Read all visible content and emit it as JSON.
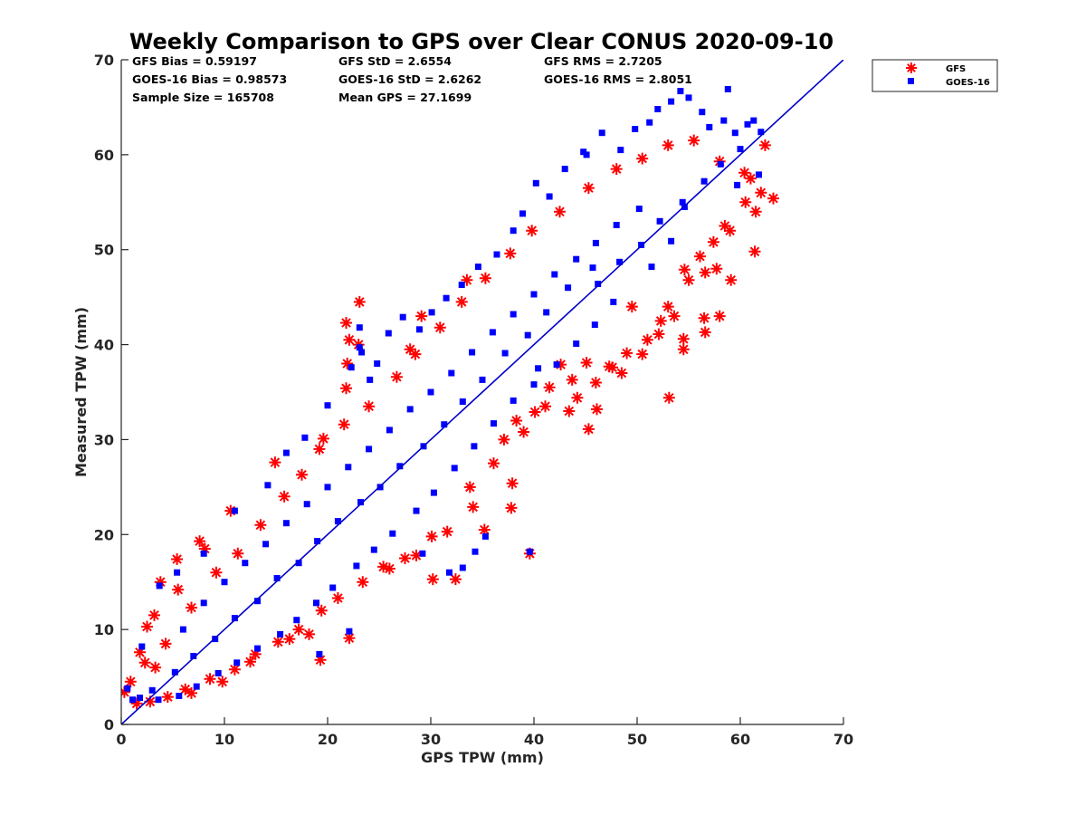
{
  "chart_data": {
    "type": "scatter",
    "title": "Weekly Comparison to GPS over Clear CONUS 2020-09-10",
    "xlabel": "GPS TPW (mm)",
    "ylabel": "Measured TPW (mm)",
    "xlim": [
      0,
      70
    ],
    "ylim": [
      0,
      70
    ],
    "xticks": [
      "0",
      "10",
      "20",
      "30",
      "40",
      "50",
      "60",
      "70"
    ],
    "yticks": [
      "0",
      "10",
      "20",
      "30",
      "40",
      "50",
      "60",
      "70"
    ],
    "grid": false,
    "legend_position": "outside top-right",
    "reference_line": {
      "name": "1:1 line",
      "from": [
        0,
        0
      ],
      "to": [
        70,
        70
      ],
      "color": "#0000cc"
    },
    "stats": [
      [
        "GFS Bias = 0.59197",
        "GFS StD = 2.6554",
        "GFS RMS = 2.7205"
      ],
      [
        "GOES-16 Bias = 0.98573",
        "GOES-16 StD = 2.6262",
        "GOES-16 RMS = 2.8051"
      ],
      [
        "Sample Size = 165708",
        "Mean GPS = 27.1699"
      ]
    ],
    "series": [
      {
        "name": "GFS",
        "marker": "asterisk",
        "color": "#ff0000",
        "points": [
          [
            0.3,
            3.4
          ],
          [
            0.9,
            4.5
          ],
          [
            1.8,
            7.6
          ],
          [
            2.3,
            6.5
          ],
          [
            2.5,
            10.3
          ],
          [
            3.2,
            11.5
          ],
          [
            3.8,
            15.0
          ],
          [
            5.4,
            17.4
          ],
          [
            5.5,
            14.2
          ],
          [
            7.6,
            19.3
          ],
          [
            8.1,
            18.5
          ],
          [
            10.6,
            22.5
          ],
          [
            14.9,
            27.6
          ],
          [
            19.6,
            30.1
          ],
          [
            21.8,
            35.4
          ],
          [
            21.9,
            38.0
          ],
          [
            21.8,
            42.3
          ],
          [
            23.1,
            44.5
          ],
          [
            23.0,
            40.0
          ],
          [
            22.1,
            40.5
          ],
          [
            28.0,
            39.5
          ],
          [
            29.1,
            43.0
          ],
          [
            33.5,
            46.8
          ],
          [
            37.8,
            22.8
          ],
          [
            37.9,
            25.4
          ],
          [
            39.6,
            18.0
          ],
          [
            43.4,
            33.0
          ],
          [
            45.3,
            31.1
          ],
          [
            46.1,
            33.2
          ],
          [
            47.3,
            37.7
          ],
          [
            49.0,
            39.1
          ],
          [
            52.3,
            42.5
          ],
          [
            53.1,
            34.4
          ],
          [
            54.5,
            39.5
          ],
          [
            54.5,
            40.6
          ],
          [
            56.6,
            41.3
          ],
          [
            56.5,
            42.8
          ],
          [
            58.0,
            43.0
          ],
          [
            59.1,
            46.8
          ],
          [
            61.4,
            49.8
          ],
          [
            61.5,
            54.0
          ],
          [
            62.0,
            56.0
          ],
          [
            62.4,
            61.0
          ],
          [
            63.2,
            55.4
          ],
          [
            35.2,
            20.5
          ],
          [
            34.1,
            22.9
          ],
          [
            30.2,
            15.3
          ],
          [
            32.4,
            15.3
          ],
          [
            28.6,
            17.8
          ],
          [
            25.4,
            16.6
          ],
          [
            18.2,
            9.5
          ],
          [
            22.1,
            9.1
          ],
          [
            19.3,
            6.8
          ],
          [
            9.8,
            4.5
          ],
          [
            6.8,
            3.3
          ],
          [
            12.5,
            6.6
          ],
          [
            16.3,
            9.0
          ],
          [
            38.3,
            32.0
          ],
          [
            41.1,
            33.5
          ],
          [
            44.2,
            34.4
          ],
          [
            46.0,
            36.0
          ],
          [
            47.6,
            37.6
          ],
          [
            48.5,
            37.0
          ],
          [
            50.5,
            39.0
          ],
          [
            51.0,
            40.5
          ],
          [
            52.1,
            41.1
          ],
          [
            53.0,
            44.0
          ],
          [
            53.6,
            43.0
          ],
          [
            55.0,
            46.8
          ],
          [
            56.6,
            47.6
          ],
          [
            57.7,
            48.0
          ],
          [
            59.0,
            52.0
          ],
          [
            60.5,
            55.0
          ],
          [
            61.0,
            57.5
          ],
          [
            58.5,
            52.5
          ],
          [
            57.4,
            50.8
          ],
          [
            56.1,
            49.3
          ],
          [
            54.6,
            47.9
          ],
          [
            49.5,
            44.0
          ],
          [
            45.1,
            38.1
          ],
          [
            42.6,
            37.9
          ],
          [
            40.1,
            32.9
          ],
          [
            37.1,
            30.0
          ],
          [
            36.1,
            27.5
          ],
          [
            33.8,
            25.0
          ],
          [
            31.6,
            20.3
          ],
          [
            30.1,
            19.8
          ],
          [
            27.5,
            17.5
          ],
          [
            26.0,
            16.4
          ],
          [
            23.4,
            15.0
          ],
          [
            21.0,
            13.3
          ],
          [
            19.4,
            12.0
          ],
          [
            17.2,
            10.0
          ],
          [
            15.2,
            8.7
          ],
          [
            13.0,
            7.4
          ],
          [
            11.0,
            5.8
          ],
          [
            8.6,
            4.8
          ],
          [
            6.2,
            3.7
          ],
          [
            4.5,
            2.9
          ],
          [
            2.8,
            2.4
          ],
          [
            1.5,
            2.2
          ],
          [
            3.3,
            6.0
          ],
          [
            4.3,
            8.5
          ],
          [
            6.8,
            12.3
          ],
          [
            9.2,
            16.0
          ],
          [
            11.3,
            18.0
          ],
          [
            13.5,
            21.0
          ],
          [
            15.8,
            24.0
          ],
          [
            17.5,
            26.3
          ],
          [
            19.2,
            29.0
          ],
          [
            21.6,
            31.6
          ],
          [
            24.0,
            33.5
          ],
          [
            26.7,
            36.6
          ],
          [
            28.5,
            39.0
          ],
          [
            30.9,
            41.8
          ],
          [
            33.0,
            44.5
          ],
          [
            35.3,
            47.0
          ],
          [
            37.7,
            49.6
          ],
          [
            39.8,
            52.0
          ],
          [
            42.5,
            54.0
          ],
          [
            45.3,
            56.5
          ],
          [
            48.0,
            58.5
          ],
          [
            50.5,
            59.6
          ],
          [
            53.0,
            61.0
          ],
          [
            55.5,
            61.5
          ],
          [
            58.0,
            59.3
          ],
          [
            60.4,
            58.1
          ],
          [
            39.0,
            30.8
          ],
          [
            41.5,
            35.5
          ],
          [
            43.7,
            36.3
          ]
        ]
      },
      {
        "name": "GOES-16",
        "marker": "square",
        "color": "#0000ff",
        "points": [
          [
            0.6,
            3.8
          ],
          [
            1.1,
            2.6
          ],
          [
            2.0,
            8.2
          ],
          [
            3.7,
            14.6
          ],
          [
            5.4,
            16.0
          ],
          [
            8.0,
            18.0
          ],
          [
            11.0,
            22.5
          ],
          [
            14.2,
            25.2
          ],
          [
            16.0,
            28.6
          ],
          [
            17.8,
            30.2
          ],
          [
            20.0,
            33.6
          ],
          [
            22.3,
            37.6
          ],
          [
            23.1,
            39.7
          ],
          [
            23.1,
            41.8
          ],
          [
            23.3,
            39.2
          ],
          [
            24.1,
            36.3
          ],
          [
            24.8,
            38.0
          ],
          [
            25.9,
            41.2
          ],
          [
            27.3,
            42.9
          ],
          [
            28.9,
            41.6
          ],
          [
            30.1,
            43.4
          ],
          [
            31.5,
            44.9
          ],
          [
            33.0,
            46.3
          ],
          [
            34.6,
            48.2
          ],
          [
            36.4,
            49.5
          ],
          [
            38.0,
            52.0
          ],
          [
            38.9,
            53.8
          ],
          [
            40.2,
            57.0
          ],
          [
            41.5,
            55.6
          ],
          [
            43.0,
            58.5
          ],
          [
            44.8,
            60.3
          ],
          [
            45.1,
            60.0
          ],
          [
            46.6,
            62.3
          ],
          [
            48.4,
            60.5
          ],
          [
            49.8,
            62.7
          ],
          [
            51.2,
            63.4
          ],
          [
            52.0,
            64.8
          ],
          [
            53.3,
            65.6
          ],
          [
            54.2,
            66.7
          ],
          [
            55.0,
            66.0
          ],
          [
            56.3,
            64.5
          ],
          [
            57.0,
            62.9
          ],
          [
            58.4,
            63.6
          ],
          [
            58.8,
            66.9
          ],
          [
            59.5,
            62.3
          ],
          [
            60.7,
            63.2
          ],
          [
            61.3,
            63.6
          ],
          [
            62.0,
            62.4
          ],
          [
            59.7,
            56.8
          ],
          [
            61.8,
            57.9
          ],
          [
            54.6,
            54.5
          ],
          [
            53.3,
            50.9
          ],
          [
            51.4,
            48.2
          ],
          [
            47.7,
            44.5
          ],
          [
            45.9,
            42.1
          ],
          [
            44.1,
            40.1
          ],
          [
            42.2,
            37.9
          ],
          [
            40.0,
            35.8
          ],
          [
            38.0,
            34.1
          ],
          [
            36.1,
            31.7
          ],
          [
            34.2,
            29.3
          ],
          [
            32.3,
            27.0
          ],
          [
            30.3,
            24.4
          ],
          [
            28.6,
            22.5
          ],
          [
            26.3,
            20.1
          ],
          [
            24.5,
            18.4
          ],
          [
            22.8,
            16.7
          ],
          [
            20.5,
            14.4
          ],
          [
            18.9,
            12.8
          ],
          [
            17.0,
            11.0
          ],
          [
            15.4,
            9.5
          ],
          [
            13.2,
            8.0
          ],
          [
            11.2,
            6.5
          ],
          [
            9.4,
            5.4
          ],
          [
            7.3,
            4.0
          ],
          [
            5.6,
            3.0
          ],
          [
            3.6,
            2.6
          ],
          [
            1.8,
            2.8
          ],
          [
            22.1,
            9.8
          ],
          [
            19.2,
            7.4
          ],
          [
            29.2,
            18.0
          ],
          [
            31.8,
            16.0
          ],
          [
            33.1,
            16.5
          ],
          [
            34.3,
            18.2
          ],
          [
            35.3,
            19.8
          ],
          [
            39.6,
            18.2
          ],
          [
            40.4,
            37.5
          ],
          [
            45.7,
            48.1
          ],
          [
            43.3,
            46.0
          ],
          [
            41.2,
            43.4
          ],
          [
            39.4,
            41.0
          ],
          [
            37.2,
            39.1
          ],
          [
            35.0,
            36.3
          ],
          [
            33.1,
            34.0
          ],
          [
            31.3,
            31.6
          ],
          [
            29.3,
            29.3
          ],
          [
            27.0,
            27.2
          ],
          [
            25.1,
            25.0
          ],
          [
            23.2,
            23.4
          ],
          [
            21.0,
            21.4
          ],
          [
            19.0,
            19.3
          ],
          [
            17.2,
            17.0
          ],
          [
            15.1,
            15.4
          ],
          [
            13.2,
            13.0
          ],
          [
            11.0,
            11.2
          ],
          [
            9.1,
            9.0
          ],
          [
            7.0,
            7.2
          ],
          [
            5.2,
            5.5
          ],
          [
            3.0,
            3.6
          ],
          [
            46.2,
            46.4
          ],
          [
            48.3,
            48.7
          ],
          [
            50.4,
            50.5
          ],
          [
            52.2,
            53.0
          ],
          [
            54.4,
            55.0
          ],
          [
            56.5,
            57.2
          ],
          [
            58.1,
            59.0
          ],
          [
            60.0,
            60.6
          ],
          [
            50.2,
            54.3
          ],
          [
            48.0,
            52.6
          ],
          [
            46.0,
            50.7
          ],
          [
            44.1,
            49.0
          ],
          [
            42.0,
            47.4
          ],
          [
            40.0,
            45.3
          ],
          [
            38.0,
            43.2
          ],
          [
            36.0,
            41.3
          ],
          [
            34.0,
            39.2
          ],
          [
            32.0,
            37.0
          ],
          [
            30.0,
            35.0
          ],
          [
            28.0,
            33.2
          ],
          [
            26.0,
            31.0
          ],
          [
            24.0,
            29.0
          ],
          [
            22.0,
            27.1
          ],
          [
            20.0,
            25.0
          ],
          [
            18.0,
            23.2
          ],
          [
            16.0,
            21.2
          ],
          [
            14.0,
            19.0
          ],
          [
            12.0,
            17.0
          ],
          [
            10.0,
            15.0
          ],
          [
            8.0,
            12.8
          ],
          [
            6.0,
            10.0
          ]
        ]
      }
    ]
  }
}
